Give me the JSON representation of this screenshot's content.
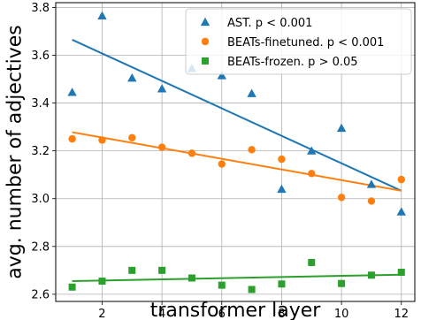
{
  "chart_data": {
    "type": "scatter",
    "xlabel": "transformer layer",
    "ylabel": "avg. number of adjectives",
    "xlim": [
      0.45,
      12.45
    ],
    "ylim": [
      2.57,
      3.82
    ],
    "xticks": [
      2,
      4,
      6,
      8,
      10,
      12
    ],
    "yticks": [
      2.6,
      2.8,
      3.0,
      3.2,
      3.4,
      3.6,
      3.8
    ],
    "ytick_labels": [
      "2.6",
      "2.8",
      "3.0",
      "3.2",
      "3.4",
      "3.6",
      "3.8"
    ],
    "grid": true,
    "legend_position": "top-right",
    "series": [
      {
        "name": "AST. p < 0.001",
        "marker": "triangle",
        "color": "#1f77b4",
        "x": [
          1,
          2,
          3,
          4,
          5,
          6,
          7,
          8,
          9,
          10,
          11,
          12
        ],
        "y": [
          3.445,
          3.765,
          3.505,
          3.46,
          3.545,
          3.515,
          3.44,
          3.04,
          3.2,
          3.295,
          3.06,
          2.945
        ],
        "trend": [
          3.665,
          3.033
        ]
      },
      {
        "name": "BEATs-finetuned. p < 0.001",
        "marker": "circle",
        "color": "#ff7f0e",
        "x": [
          1,
          2,
          3,
          4,
          5,
          6,
          7,
          8,
          9,
          10,
          11,
          12
        ],
        "y": [
          3.25,
          3.245,
          3.255,
          3.215,
          3.19,
          3.145,
          3.205,
          3.165,
          3.105,
          3.005,
          2.99,
          3.08
        ],
        "trend": [
          3.278,
          3.033
        ]
      },
      {
        "name": "BEATs-frozen. p > 0.05",
        "marker": "square",
        "color": "#2ca02c",
        "x": [
          1,
          2,
          3,
          4,
          5,
          6,
          7,
          8,
          9,
          10,
          11,
          12
        ],
        "y": [
          2.63,
          2.655,
          2.7,
          2.7,
          2.668,
          2.638,
          2.62,
          2.643,
          2.733,
          2.645,
          2.68,
          2.692
        ],
        "trend": [
          2.655,
          2.682
        ]
      }
    ]
  }
}
